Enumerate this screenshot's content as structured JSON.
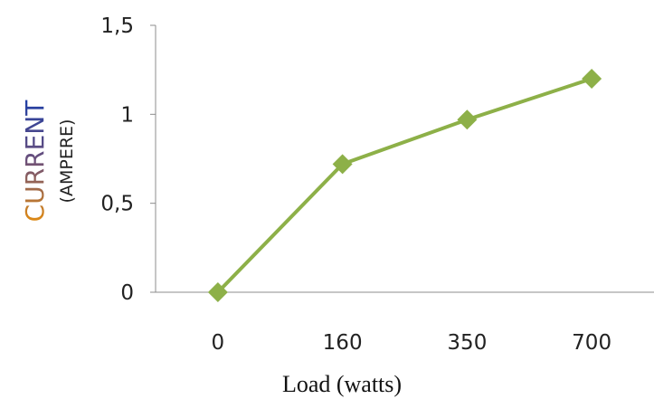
{
  "chart_data": {
    "type": "line",
    "categories": [
      "0",
      "160",
      "350",
      "700"
    ],
    "values": [
      0,
      0.72,
      0.97,
      1.2
    ],
    "xlabel": "Load (watts)",
    "ylabel_main": "CURRENT",
    "ylabel_sub": "(AMPERE)",
    "ylim": [
      0,
      1.5
    ],
    "yticks": [
      "0",
      "0,5",
      "1",
      "1,5"
    ],
    "grid": false,
    "legend": "none",
    "colors": {
      "line": "#8db048",
      "marker": "#8db048",
      "ylabel_gradient_top": "#1f3fa6",
      "ylabel_gradient_bottom": "#e08a12"
    }
  }
}
